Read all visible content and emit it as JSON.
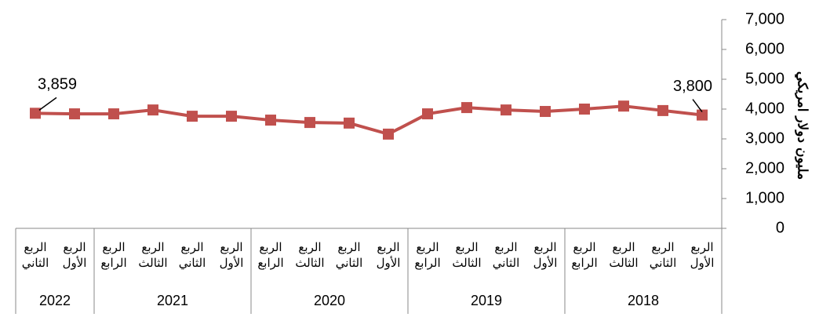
{
  "chart_data": {
    "type": "line",
    "y_label": "مليون دولار امريكي",
    "x_reversed": true,
    "categories": [
      "الربع الأول",
      "الربع الثاني",
      "الربع الثالث",
      "الربع الرابع",
      "الربع الأول",
      "الربع الثاني",
      "الربع الثالث",
      "الربع الرابع",
      "الربع الأول",
      "الربع الثاني",
      "الربع الثالث",
      "الربع الرابع",
      "الربع الأول",
      "الربع الثاني",
      "الربع الثالث",
      "الربع الرابع",
      "الربع الأول",
      "الربع الثاني"
    ],
    "groups": [
      {
        "label": "2018",
        "count": 4
      },
      {
        "label": "2019",
        "count": 4
      },
      {
        "label": "2020",
        "count": 4
      },
      {
        "label": "2021",
        "count": 4
      },
      {
        "label": "2022",
        "count": 2
      }
    ],
    "series": [
      {
        "color": "#c0504d",
        "values": [
          3800,
          3950,
          4100,
          4000,
          3920,
          3970,
          4050,
          3840,
          3160,
          3530,
          3550,
          3630,
          3760,
          3760,
          3970,
          3840,
          3840,
          3859
        ],
        "value_labels": [
          "3,800",
          null,
          null,
          null,
          null,
          null,
          null,
          null,
          null,
          null,
          null,
          null,
          null,
          null,
          null,
          null,
          null,
          "3,859"
        ]
      }
    ],
    "ylim": [
      0,
      7000
    ],
    "yticks": [
      0,
      {
        "value": 1000,
        "label": "1,000"
      },
      {
        "value": 2000,
        "label": "2,000"
      },
      {
        "value": 3000,
        "label": "3,000"
      },
      {
        "value": 4000,
        "label": "4,000"
      },
      {
        "value": 5000,
        "label": "5,000"
      },
      {
        "value": 6000,
        "label": "6,000"
      },
      {
        "value": 7000,
        "label": "7,000"
      }
    ]
  }
}
